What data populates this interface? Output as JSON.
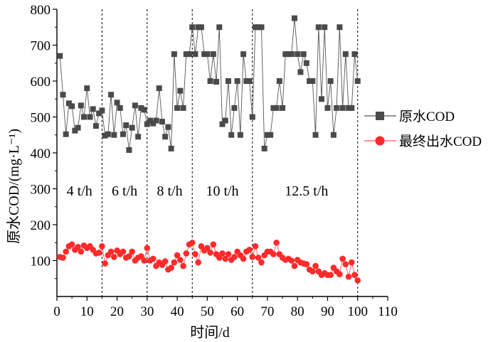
{
  "chart_data": {
    "type": "line",
    "xlabel": "时间/d",
    "ylabel": "原水COD/(mg·L⁻¹)",
    "xlim": [
      0,
      110
    ],
    "ylim": [
      0,
      800
    ],
    "xticks": [
      0,
      10,
      20,
      30,
      40,
      50,
      60,
      70,
      80,
      90,
      100,
      110
    ],
    "yticks": [
      100,
      200,
      300,
      400,
      500,
      600,
      700,
      800
    ],
    "grid": false,
    "legend": "right",
    "dividers": [
      15,
      30,
      45,
      65,
      100
    ],
    "regions": [
      {
        "label": "4 t/h",
        "x": 7.5,
        "y": 295
      },
      {
        "label": "6 t/h",
        "x": 22.5,
        "y": 295
      },
      {
        "label": "8 t/h",
        "x": 37.5,
        "y": 295
      },
      {
        "label": "10 t/h",
        "x": 55,
        "y": 295
      },
      {
        "label": "12.5 t/h",
        "x": 83,
        "y": 295
      }
    ],
    "series": [
      {
        "name": "原水COD",
        "color": "#4a4a4a",
        "marker": "square",
        "x": [
          1,
          2,
          3,
          4,
          5,
          6,
          7,
          8,
          9,
          10,
          11,
          12,
          13,
          14,
          15,
          16,
          17,
          18,
          19,
          20,
          21,
          22,
          23,
          24,
          25,
          26,
          27,
          28,
          29,
          30,
          31,
          32,
          33,
          34,
          35,
          36,
          37,
          38,
          39,
          40,
          41,
          42,
          43,
          44,
          45,
          46,
          47,
          48,
          49,
          50,
          51,
          52,
          53,
          54,
          55,
          56,
          57,
          58,
          59,
          60,
          61,
          62,
          63,
          64,
          65,
          66,
          67,
          68,
          69,
          70,
          71,
          72,
          73,
          74,
          75,
          76,
          77,
          78,
          79,
          80,
          81,
          82,
          83,
          84,
          85,
          86,
          87,
          88,
          89,
          90,
          91,
          92,
          93,
          94,
          95,
          96,
          97,
          98,
          99,
          100
        ],
        "values": [
          670,
          562,
          452,
          538,
          530,
          462,
          470,
          532,
          500,
          580,
          500,
          522,
          475,
          510,
          518,
          448,
          452,
          562,
          450,
          540,
          525,
          452,
          477,
          408,
          470,
          532,
          445,
          525,
          520,
          480,
          490,
          482,
          490,
          580,
          487,
          445,
          472,
          412,
          675,
          525,
          573,
          525,
          675,
          675,
          750,
          675,
          750,
          750,
          675,
          675,
          600,
          675,
          598,
          750,
          480,
          490,
          600,
          450,
          525,
          600,
          450,
          675,
          600,
          600,
          500,
          750,
          750,
          750,
          412,
          450,
          450,
          525,
          525,
          600,
          525,
          675,
          675,
          675,
          775,
          675,
          625,
          675,
          650,
          600,
          600,
          450,
          750,
          550,
          750,
          525,
          600,
          450,
          525,
          750,
          525,
          675,
          525,
          525,
          675,
          600
        ],
        "note_x_shift": 0
      },
      {
        "name": "最终出水COD",
        "color": "#ff2a2a",
        "marker": "circle",
        "x": [
          1,
          2,
          3,
          4,
          5,
          6,
          7,
          8,
          9,
          10,
          11,
          12,
          13,
          14,
          15,
          16,
          17,
          18,
          19,
          20,
          21,
          22,
          23,
          24,
          25,
          26,
          27,
          28,
          29,
          30,
          31,
          32,
          33,
          34,
          35,
          36,
          37,
          38,
          39,
          40,
          41,
          42,
          43,
          44,
          45,
          46,
          47,
          48,
          49,
          50,
          51,
          52,
          53,
          54,
          55,
          56,
          57,
          58,
          59,
          60,
          61,
          62,
          63,
          64,
          65,
          66,
          67,
          68,
          69,
          70,
          71,
          72,
          73,
          74,
          75,
          76,
          77,
          78,
          79,
          80,
          81,
          82,
          83,
          84,
          85,
          86,
          87,
          88,
          89,
          90,
          91,
          92,
          93,
          94,
          95,
          96,
          97,
          98,
          99,
          100
        ],
        "values": [
          110,
          108,
          125,
          140,
          145,
          130,
          138,
          125,
          142,
          135,
          140,
          130,
          120,
          122,
          140,
          92,
          115,
          125,
          110,
          128,
          118,
          125,
          108,
          112,
          125,
          100,
          108,
          112,
          100,
          135,
          100,
          105,
          85,
          95,
          88,
          98,
          75,
          80,
          95,
          115,
          102,
          85,
          120,
          145,
          150,
          118,
          95,
          140,
          128,
          135,
          122,
          145,
          118,
          108,
          120,
          105,
          118,
          102,
          110,
          125,
          115,
          105,
          125,
          130,
          110,
          140,
          108,
          95,
          115,
          125,
          125,
          118,
          150,
          118,
          108,
          102,
          105,
          100,
          85,
          102,
          95,
          92,
          90,
          75,
          70,
          85,
          70,
          60,
          65,
          60,
          60,
          80,
          70,
          62,
          105,
          90,
          55,
          95,
          60,
          45
        ],
        "note_x_shift": 0
      }
    ]
  }
}
